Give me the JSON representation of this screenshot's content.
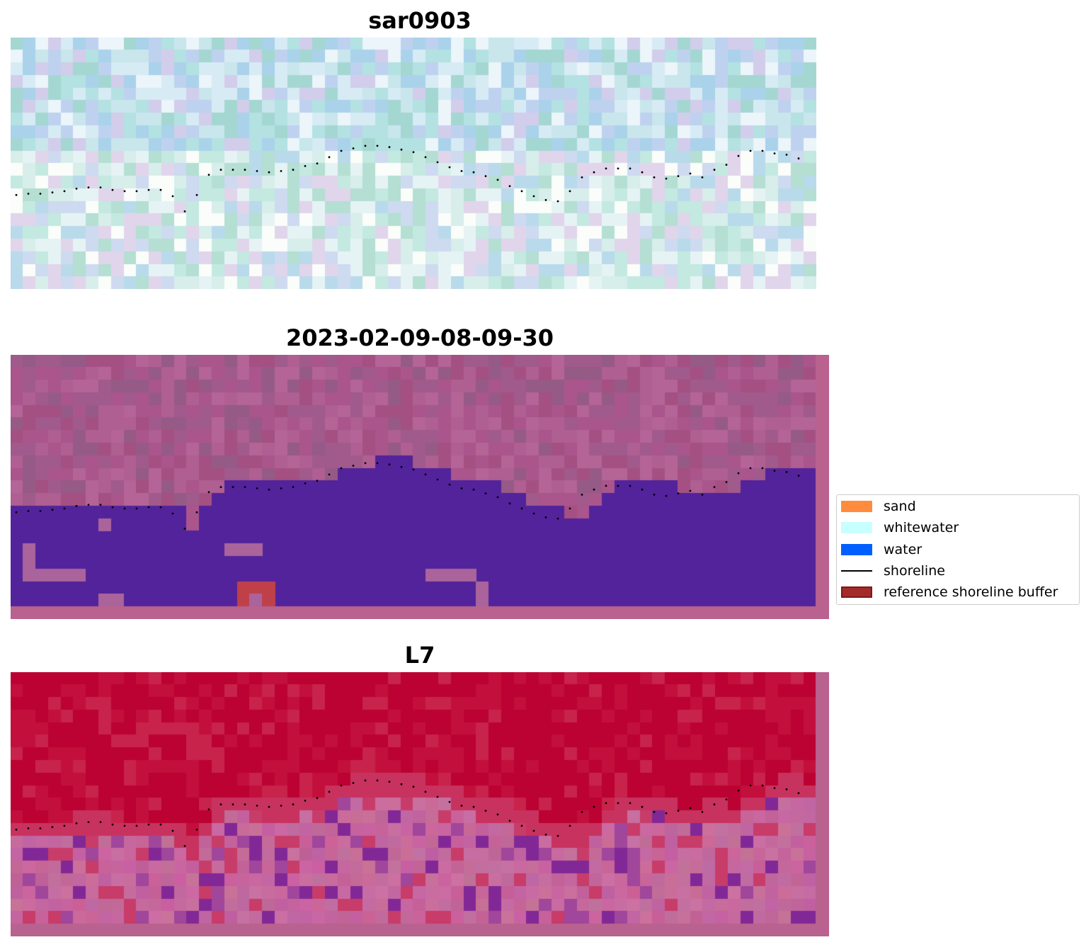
{
  "panels": [
    {
      "id": "sar",
      "title": "sar0903",
      "style": "sar"
    },
    {
      "id": "classified",
      "title": "2023-02-09-08-09-30",
      "style": "classified"
    },
    {
      "id": "index",
      "title": "L7",
      "style": "index"
    }
  ],
  "legend": {
    "items": [
      {
        "label": "sand",
        "color": "#ff8c3c",
        "kind": "patch"
      },
      {
        "label": "whitewater",
        "color": "#c8ffff",
        "kind": "patch"
      },
      {
        "label": "water",
        "color": "#0060ff",
        "kind": "patch"
      },
      {
        "label": "shoreline",
        "color": "#000000",
        "kind": "line"
      },
      {
        "label": "reference shoreline buffer",
        "color": "#a52a2a",
        "kind": "patch"
      }
    ]
  },
  "colors": {
    "water_class": "#52239a",
    "background_pink": "#b9618f",
    "reference_buffer": "#c0404a",
    "index_high": "#bb0232",
    "shoreline_dots": "#000000"
  },
  "shoreline_rows": [
    12.5,
    12.4,
    12.4,
    12.3,
    12.2,
    12.0,
    11.9,
    11.9,
    12.1,
    12.2,
    12.2,
    12.1,
    12.1,
    12.6,
    13.8,
    12.5,
    10.9,
    10.5,
    10.5,
    10.5,
    10.6,
    10.7,
    10.6,
    10.5,
    10.2,
    10.0,
    9.5,
    9.0,
    8.8,
    8.6,
    8.6,
    8.7,
    8.9,
    9.1,
    9.5,
    9.9,
    10.3,
    10.6,
    10.7,
    11.0,
    11.3,
    11.8,
    12.2,
    12.6,
    12.9,
    13.0,
    12.2,
    11.1,
    10.7,
    10.4,
    10.4,
    10.4,
    10.7,
    11.1,
    11.2,
    11.0,
    10.8,
    11.1,
    10.5,
    10.1,
    9.4,
    9.0,
    9.0,
    9.2,
    9.3,
    9.6
  ]
}
